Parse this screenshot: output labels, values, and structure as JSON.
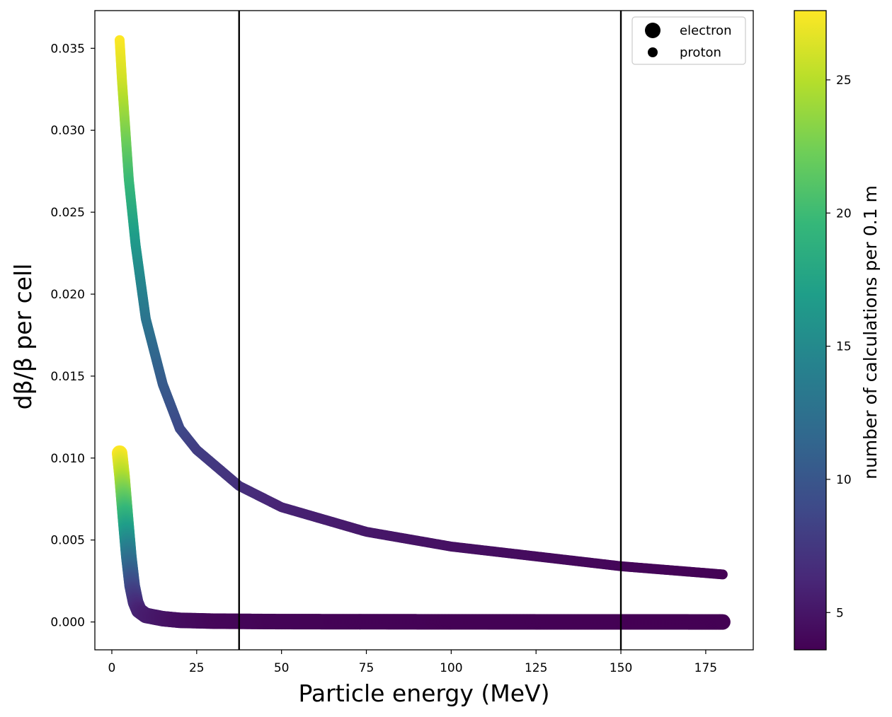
{
  "chart_data": {
    "type": "scatter",
    "title": "",
    "xlabel": "Particle energy (MeV)",
    "ylabel": "dβ/β per cell",
    "colorbar_label": "number of calculations per 0.1 m",
    "xlim": [
      -5,
      189
    ],
    "ylim": [
      -0.0017,
      0.0373
    ],
    "x_ticks": [
      0,
      25,
      50,
      75,
      100,
      125,
      150,
      175
    ],
    "y_ticks": [
      0.0,
      0.005,
      0.01,
      0.015,
      0.02,
      0.025,
      0.03,
      0.035
    ],
    "y_tick_labels": [
      "0.000",
      "0.005",
      "0.010",
      "0.015",
      "0.020",
      "0.025",
      "0.030",
      "0.035"
    ],
    "colorbar_range": [
      3.6,
      27.6
    ],
    "colorbar_ticks": [
      5,
      10,
      15,
      20,
      25
    ],
    "vertical_lines": [
      37.5,
      150
    ],
    "legend": {
      "position": "upper right",
      "entries": [
        "electron",
        "proton"
      ]
    },
    "grid": false,
    "series": [
      {
        "name": "electron",
        "marker_size": "large",
        "points": [
          {
            "x": 2.3,
            "y": 0.0103,
            "c": 27.6
          },
          {
            "x": 3,
            "y": 0.0089,
            "c": 25
          },
          {
            "x": 4,
            "y": 0.0064,
            "c": 19
          },
          {
            "x": 5,
            "y": 0.004,
            "c": 13
          },
          {
            "x": 6,
            "y": 0.0022,
            "c": 9
          },
          {
            "x": 7,
            "y": 0.0012,
            "c": 7
          },
          {
            "x": 8,
            "y": 0.0007,
            "c": 6
          },
          {
            "x": 10,
            "y": 0.0004,
            "c": 5.5
          },
          {
            "x": 15,
            "y": 0.0002,
            "c": 5
          },
          {
            "x": 20,
            "y": 0.0001,
            "c": 4.5
          },
          {
            "x": 30,
            "y": 5e-05,
            "c": 4
          },
          {
            "x": 50,
            "y": 2e-05,
            "c": 3.8
          },
          {
            "x": 100,
            "y": 1e-05,
            "c": 3.7
          },
          {
            "x": 180,
            "y": 0.0,
            "c": 3.6
          }
        ]
      },
      {
        "name": "proton",
        "marker_size": "small",
        "points": [
          {
            "x": 2.3,
            "y": 0.0355,
            "c": 27.6
          },
          {
            "x": 3,
            "y": 0.033,
            "c": 26
          },
          {
            "x": 4,
            "y": 0.03,
            "c": 23
          },
          {
            "x": 5,
            "y": 0.027,
            "c": 20
          },
          {
            "x": 7,
            "y": 0.023,
            "c": 16.5
          },
          {
            "x": 10,
            "y": 0.0185,
            "c": 13
          },
          {
            "x": 15,
            "y": 0.0145,
            "c": 10.5
          },
          {
            "x": 20,
            "y": 0.0118,
            "c": 9
          },
          {
            "x": 25,
            "y": 0.0105,
            "c": 8
          },
          {
            "x": 37.5,
            "y": 0.0083,
            "c": 7
          },
          {
            "x": 50,
            "y": 0.007,
            "c": 6
          },
          {
            "x": 75,
            "y": 0.0055,
            "c": 5.2
          },
          {
            "x": 100,
            "y": 0.0046,
            "c": 4.7
          },
          {
            "x": 125,
            "y": 0.004,
            "c": 4.3
          },
          {
            "x": 150,
            "y": 0.0034,
            "c": 4.0
          },
          {
            "x": 180,
            "y": 0.0029,
            "c": 3.7
          }
        ]
      }
    ]
  },
  "colormap": {
    "name": "viridis",
    "stops": [
      "#440154",
      "#482878",
      "#3e4a89",
      "#31688e",
      "#26828e",
      "#1f9e89",
      "#35b779",
      "#6ece58",
      "#b5de2b",
      "#fde725"
    ]
  },
  "colors": {
    "axis": "#000000",
    "background": "#ffffff",
    "vline": "#000000"
  }
}
